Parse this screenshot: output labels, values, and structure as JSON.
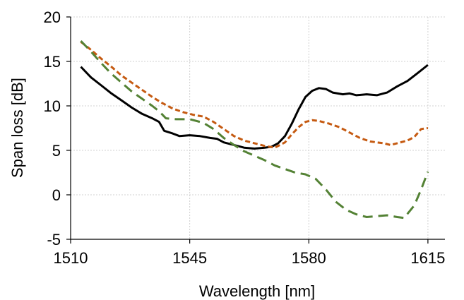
{
  "chart_data": {
    "type": "line",
    "title": "",
    "xlabel": "Wavelength [nm]",
    "ylabel": "Span loss [dB]",
    "xlim": [
      1510,
      1620
    ],
    "ylim": [
      -5,
      20
    ],
    "xticks": [
      1510,
      1545,
      1580,
      1615
    ],
    "yticks": [
      -5,
      0,
      5,
      10,
      15,
      20
    ],
    "grid": "dotted",
    "legend": "none",
    "series": [
      {
        "color": "#000000",
        "dash": "solid",
        "points": [
          [
            1513,
            14.4
          ],
          [
            1516,
            13.2
          ],
          [
            1519,
            12.3
          ],
          [
            1522,
            11.4
          ],
          [
            1525,
            10.6
          ],
          [
            1528,
            9.8
          ],
          [
            1531,
            9.1
          ],
          [
            1534,
            8.6
          ],
          [
            1536,
            8.2
          ],
          [
            1537.5,
            7.2
          ],
          [
            1540,
            6.9
          ],
          [
            1542,
            6.6
          ],
          [
            1545,
            6.7
          ],
          [
            1548,
            6.6
          ],
          [
            1551,
            6.4
          ],
          [
            1553,
            6.3
          ],
          [
            1555,
            5.9
          ],
          [
            1558,
            5.6
          ],
          [
            1561,
            5.3
          ],
          [
            1564,
            5.2
          ],
          [
            1567,
            5.3
          ],
          [
            1569,
            5.4
          ],
          [
            1571,
            5.8
          ],
          [
            1573,
            6.6
          ],
          [
            1575,
            8.0
          ],
          [
            1577,
            9.6
          ],
          [
            1579,
            11.0
          ],
          [
            1581,
            11.7
          ],
          [
            1583,
            12.0
          ],
          [
            1585,
            11.9
          ],
          [
            1587,
            11.5
          ],
          [
            1590,
            11.3
          ],
          [
            1592,
            11.4
          ],
          [
            1594,
            11.2
          ],
          [
            1597,
            11.3
          ],
          [
            1600,
            11.2
          ],
          [
            1603,
            11.5
          ],
          [
            1606,
            12.2
          ],
          [
            1609,
            12.8
          ],
          [
            1612,
            13.7
          ],
          [
            1615,
            14.6
          ]
        ]
      },
      {
        "color": "#C55A11",
        "dash": "short-dash",
        "points": [
          [
            1513,
            17.2
          ],
          [
            1516,
            16.3
          ],
          [
            1519,
            15.3
          ],
          [
            1522,
            14.4
          ],
          [
            1525,
            13.4
          ],
          [
            1528,
            12.6
          ],
          [
            1531,
            11.8
          ],
          [
            1534,
            11.0
          ],
          [
            1537,
            10.3
          ],
          [
            1540,
            9.7
          ],
          [
            1543,
            9.3
          ],
          [
            1546,
            9.0
          ],
          [
            1549,
            8.8
          ],
          [
            1552,
            8.2
          ],
          [
            1555,
            7.4
          ],
          [
            1558,
            6.6
          ],
          [
            1561,
            6.1
          ],
          [
            1564,
            5.8
          ],
          [
            1567,
            5.5
          ],
          [
            1570,
            5.3
          ],
          [
            1573,
            5.9
          ],
          [
            1575,
            6.8
          ],
          [
            1577,
            7.6
          ],
          [
            1579,
            8.2
          ],
          [
            1581,
            8.4
          ],
          [
            1583,
            8.3
          ],
          [
            1586,
            8.0
          ],
          [
            1589,
            7.6
          ],
          [
            1592,
            7.0
          ],
          [
            1595,
            6.4
          ],
          [
            1598,
            6.0
          ],
          [
            1600,
            5.9
          ],
          [
            1602,
            5.8
          ],
          [
            1604,
            5.6
          ],
          [
            1606,
            5.8
          ],
          [
            1609,
            6.1
          ],
          [
            1611,
            6.5
          ],
          [
            1613,
            7.4
          ],
          [
            1615,
            7.5
          ]
        ]
      },
      {
        "color": "#548235",
        "dash": "long-dash",
        "points": [
          [
            1513,
            17.3
          ],
          [
            1516,
            16.1
          ],
          [
            1519,
            14.8
          ],
          [
            1522,
            13.6
          ],
          [
            1525,
            12.6
          ],
          [
            1528,
            11.6
          ],
          [
            1531,
            10.8
          ],
          [
            1534,
            10.0
          ],
          [
            1536,
            9.4
          ],
          [
            1538,
            8.6
          ],
          [
            1541,
            8.5
          ],
          [
            1545,
            8.5
          ],
          [
            1549,
            8.1
          ],
          [
            1552,
            7.4
          ],
          [
            1555,
            6.4
          ],
          [
            1558,
            5.6
          ],
          [
            1561,
            4.9
          ],
          [
            1564,
            4.4
          ],
          [
            1567,
            3.9
          ],
          [
            1570,
            3.3
          ],
          [
            1573,
            2.9
          ],
          [
            1576,
            2.5
          ],
          [
            1579,
            2.3
          ],
          [
            1582,
            1.8
          ],
          [
            1585,
            0.6
          ],
          [
            1588,
            -0.8
          ],
          [
            1591,
            -1.7
          ],
          [
            1594,
            -2.2
          ],
          [
            1597,
            -2.5
          ],
          [
            1600,
            -2.4
          ],
          [
            1603,
            -2.3
          ],
          [
            1606,
            -2.5
          ],
          [
            1608,
            -2.6
          ],
          [
            1611,
            -1.2
          ],
          [
            1613,
            0.6
          ],
          [
            1615,
            2.6
          ]
        ]
      }
    ]
  }
}
